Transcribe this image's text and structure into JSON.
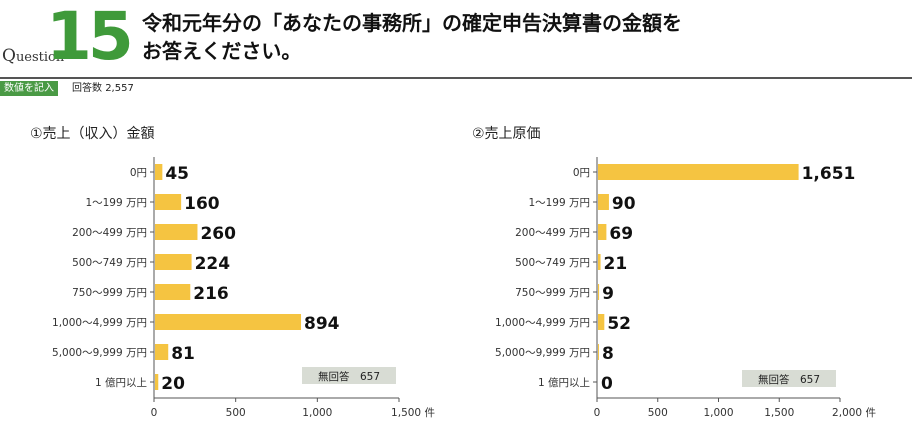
{
  "header": {
    "question_prefix_cap": "Q",
    "question_prefix_rest": "uestion",
    "question_number": "15",
    "title_line1": "令和元年分の「あなたの事務所」の確定申告決算書の金額を",
    "title_line2": "お答えください。",
    "tag": "数値を記入",
    "responses_label": "回答数",
    "responses_value": "2,557"
  },
  "colors": {
    "bar": "#f5c441",
    "accent": "#4a9a45",
    "no_answer_bg": "#d8dcd4"
  },
  "chart_data": [
    {
      "type": "bar",
      "orientation": "horizontal",
      "title": "①売上（収入）金額",
      "categories": [
        "0円",
        "1～199 万円",
        "200～499 万円",
        "500～749 万円",
        "750～999 万円",
        "1,000～4,999 万円",
        "5,000～9,999 万円",
        "1 億円以上"
      ],
      "values": [
        45,
        160,
        260,
        224,
        216,
        894,
        81,
        20
      ],
      "xlim": [
        0,
        1500
      ],
      "ticks": [
        0,
        500,
        1000,
        1500
      ],
      "tick_labels": [
        "0",
        "500",
        "1,000",
        "1,500 件"
      ],
      "no_answer": "無回答　657"
    },
    {
      "type": "bar",
      "orientation": "horizontal",
      "title": "②売上原価",
      "categories": [
        "0円",
        "1～199 万円",
        "200～499 万円",
        "500～749 万円",
        "750～999 万円",
        "1,000～4,999 万円",
        "5,000～9,999 万円",
        "1 億円以上"
      ],
      "values": [
        1651,
        90,
        69,
        21,
        9,
        52,
        8,
        0
      ],
      "xlim": [
        0,
        2000
      ],
      "ticks": [
        0,
        500,
        1000,
        1500,
        2000
      ],
      "tick_labels": [
        "0",
        "500",
        "1,000",
        "1,500",
        "2,000 件"
      ],
      "no_answer": "無回答　657"
    }
  ]
}
